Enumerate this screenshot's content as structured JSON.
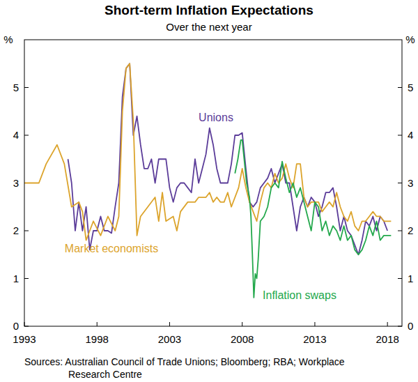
{
  "chart_data": {
    "type": "line",
    "title": "Short-term Inflation Expectations",
    "subtitle": "Over the next year",
    "y_label": "%",
    "sources": [
      "Sources: Australian Council of Trade Unions; Bloomberg; RBA; Workplace",
      "Research Centre"
    ],
    "xlim": [
      1993,
      2019
    ],
    "xticks": [
      1993,
      1998,
      2003,
      2008,
      2013,
      2018
    ],
    "ylim": [
      0,
      6
    ],
    "yticks": [
      0,
      1,
      2,
      3,
      4,
      5
    ],
    "grid": false,
    "series": [
      {
        "name": "Unions",
        "color": "#5b3c99",
        "x": [
          1996.0,
          1996.25,
          1996.5,
          1996.75,
          1997.0,
          1997.25,
          1997.5,
          1997.75,
          1998.0,
          1998.25,
          1998.5,
          1998.75,
          1999.0,
          1999.25,
          1999.5,
          1999.75,
          2000.0,
          2000.25,
          2000.5,
          2000.75,
          2001.0,
          2001.25,
          2001.5,
          2001.75,
          2002.0,
          2002.25,
          2002.5,
          2002.75,
          2003.0,
          2003.25,
          2003.5,
          2003.75,
          2004.0,
          2004.25,
          2004.5,
          2004.75,
          2005.0,
          2005.25,
          2005.5,
          2005.75,
          2006.0,
          2006.25,
          2006.5,
          2006.75,
          2007.0,
          2007.25,
          2007.5,
          2007.75,
          2008.0,
          2008.25,
          2008.5,
          2008.75,
          2009.0,
          2009.25,
          2009.5,
          2009.75,
          2010.0,
          2010.25,
          2010.5,
          2010.75,
          2011.0,
          2011.25,
          2011.5,
          2011.75,
          2012.0,
          2012.25,
          2012.5,
          2012.75,
          2013.0,
          2013.25,
          2013.5,
          2013.75,
          2014.0,
          2014.25,
          2014.5,
          2014.75,
          2015.0,
          2015.25,
          2015.5,
          2015.75,
          2016.0,
          2016.25,
          2016.5,
          2016.75,
          2017.0,
          2017.25,
          2017.5,
          2017.75,
          2018.0
        ],
        "values": [
          3.5,
          3.0,
          2.0,
          2.6,
          2.0,
          2.5,
          1.6,
          2.0,
          2.0,
          2.3,
          2.0,
          2.0,
          1.95,
          2.5,
          3.0,
          4.8,
          5.4,
          5.5,
          4.0,
          4.4,
          3.8,
          3.3,
          3.3,
          3.5,
          3.0,
          3.5,
          3.5,
          3.5,
          2.9,
          2.6,
          2.9,
          3.0,
          3.0,
          2.9,
          2.8,
          3.5,
          3.0,
          3.3,
          3.6,
          4.15,
          3.8,
          3.3,
          3.0,
          3.0,
          3.0,
          3.4,
          4.0,
          4.0,
          4.05,
          3.3,
          2.6,
          2.5,
          2.6,
          2.9,
          3.0,
          3.1,
          3.3,
          3.0,
          3.2,
          3.4,
          3.0,
          3.0,
          2.5,
          2.0,
          2.5,
          2.7,
          2.5,
          2.7,
          2.6,
          2.3,
          2.5,
          2.8,
          2.8,
          2.9,
          2.5,
          2.0,
          2.3,
          2.0,
          1.9,
          1.7,
          1.5,
          1.8,
          2.2,
          2.1,
          2.3,
          2.0,
          2.3,
          2.2,
          2.0
        ]
      },
      {
        "name": "Market economists",
        "color": "#dca42c",
        "x": [
          1993.0,
          1993.5,
          1994.0,
          1994.5,
          1995.25,
          1995.75,
          1996.25,
          1996.75,
          1997.0,
          1997.25,
          1997.75,
          1998.25,
          1998.75,
          1999.25,
          1999.5,
          1999.75,
          2000.0,
          2000.25,
          2000.5,
          2000.75,
          2001.0,
          2001.5,
          2002.0,
          2002.25,
          2002.5,
          2002.75,
          2003.25,
          2003.5,
          2003.75,
          2004.25,
          2004.75,
          2005.0,
          2005.5,
          2005.75,
          2006.0,
          2006.25,
          2006.5,
          2006.75,
          2007.0,
          2007.25,
          2007.75,
          2008.0,
          2008.25,
          2008.5,
          2008.75,
          2009.0,
          2009.25,
          2009.5,
          2009.75,
          2010.0,
          2010.25,
          2010.5,
          2010.75,
          2011.0,
          2011.25,
          2011.5,
          2011.75,
          2012.0,
          2012.25,
          2012.5,
          2012.75,
          2013.0,
          2013.25,
          2013.5,
          2013.75,
          2014.0,
          2014.25,
          2014.5,
          2014.75,
          2015.0,
          2015.25,
          2015.5,
          2015.75,
          2016.0,
          2016.25,
          2016.5,
          2016.75,
          2017.0,
          2017.25,
          2017.5,
          2017.75,
          2018.0,
          2018.25
        ],
        "values": [
          3.0,
          3.0,
          3.0,
          3.4,
          3.8,
          3.4,
          2.5,
          2.6,
          2.4,
          1.8,
          2.2,
          1.9,
          2.3,
          2.0,
          2.3,
          4.5,
          5.4,
          5.5,
          4.3,
          1.9,
          2.3,
          2.5,
          2.7,
          2.2,
          2.8,
          2.2,
          2.3,
          2.0,
          2.4,
          2.6,
          2.6,
          2.7,
          2.7,
          2.8,
          2.6,
          2.7,
          2.6,
          2.6,
          2.8,
          2.5,
          2.9,
          3.3,
          2.9,
          2.6,
          2.4,
          2.2,
          2.6,
          2.9,
          3.0,
          2.9,
          3.2,
          3.0,
          3.1,
          3.4,
          3.1,
          2.9,
          3.4,
          3.4,
          2.7,
          2.5,
          2.6,
          2.6,
          2.6,
          2.4,
          2.5,
          2.6,
          2.5,
          2.8,
          2.5,
          2.3,
          2.2,
          2.4,
          2.1,
          2.0,
          2.2,
          2.2,
          2.3,
          2.4,
          2.3,
          2.3,
          2.2,
          2.2,
          2.2
        ]
      },
      {
        "name": "Inflation swaps",
        "color": "#23a84c",
        "x": [
          2007.5,
          2007.7,
          2007.9,
          2008.0,
          2008.1,
          2008.3,
          2008.5,
          2008.6,
          2008.7,
          2008.8,
          2008.9,
          2009.0,
          2009.1,
          2009.25,
          2009.5,
          2009.75,
          2010.0,
          2010.25,
          2010.5,
          2010.75,
          2011.0,
          2011.25,
          2011.5,
          2011.75,
          2012.0,
          2012.25,
          2012.5,
          2012.75,
          2013.0,
          2013.25,
          2013.5,
          2013.75,
          2014.0,
          2014.25,
          2014.5,
          2014.75,
          2015.0,
          2015.25,
          2015.5,
          2015.75,
          2016.0,
          2016.25,
          2016.5,
          2016.75,
          2017.0,
          2017.25,
          2017.5,
          2017.75,
          2018.0,
          2018.25
        ],
        "values": [
          3.2,
          3.5,
          3.9,
          3.9,
          3.6,
          3.0,
          2.7,
          2.3,
          1.5,
          0.6,
          1.1,
          1.0,
          1.4,
          2.2,
          2.3,
          2.5,
          2.9,
          3.0,
          2.9,
          3.45,
          3.1,
          2.8,
          3.0,
          2.7,
          2.9,
          2.6,
          2.3,
          2.0,
          2.6,
          2.5,
          2.0,
          2.2,
          1.9,
          2.1,
          2.0,
          1.8,
          2.1,
          1.8,
          1.9,
          1.6,
          1.5,
          1.6,
          1.8,
          2.1,
          1.9,
          2.2,
          1.8,
          1.9,
          1.9,
          1.9
        ]
      }
    ]
  }
}
